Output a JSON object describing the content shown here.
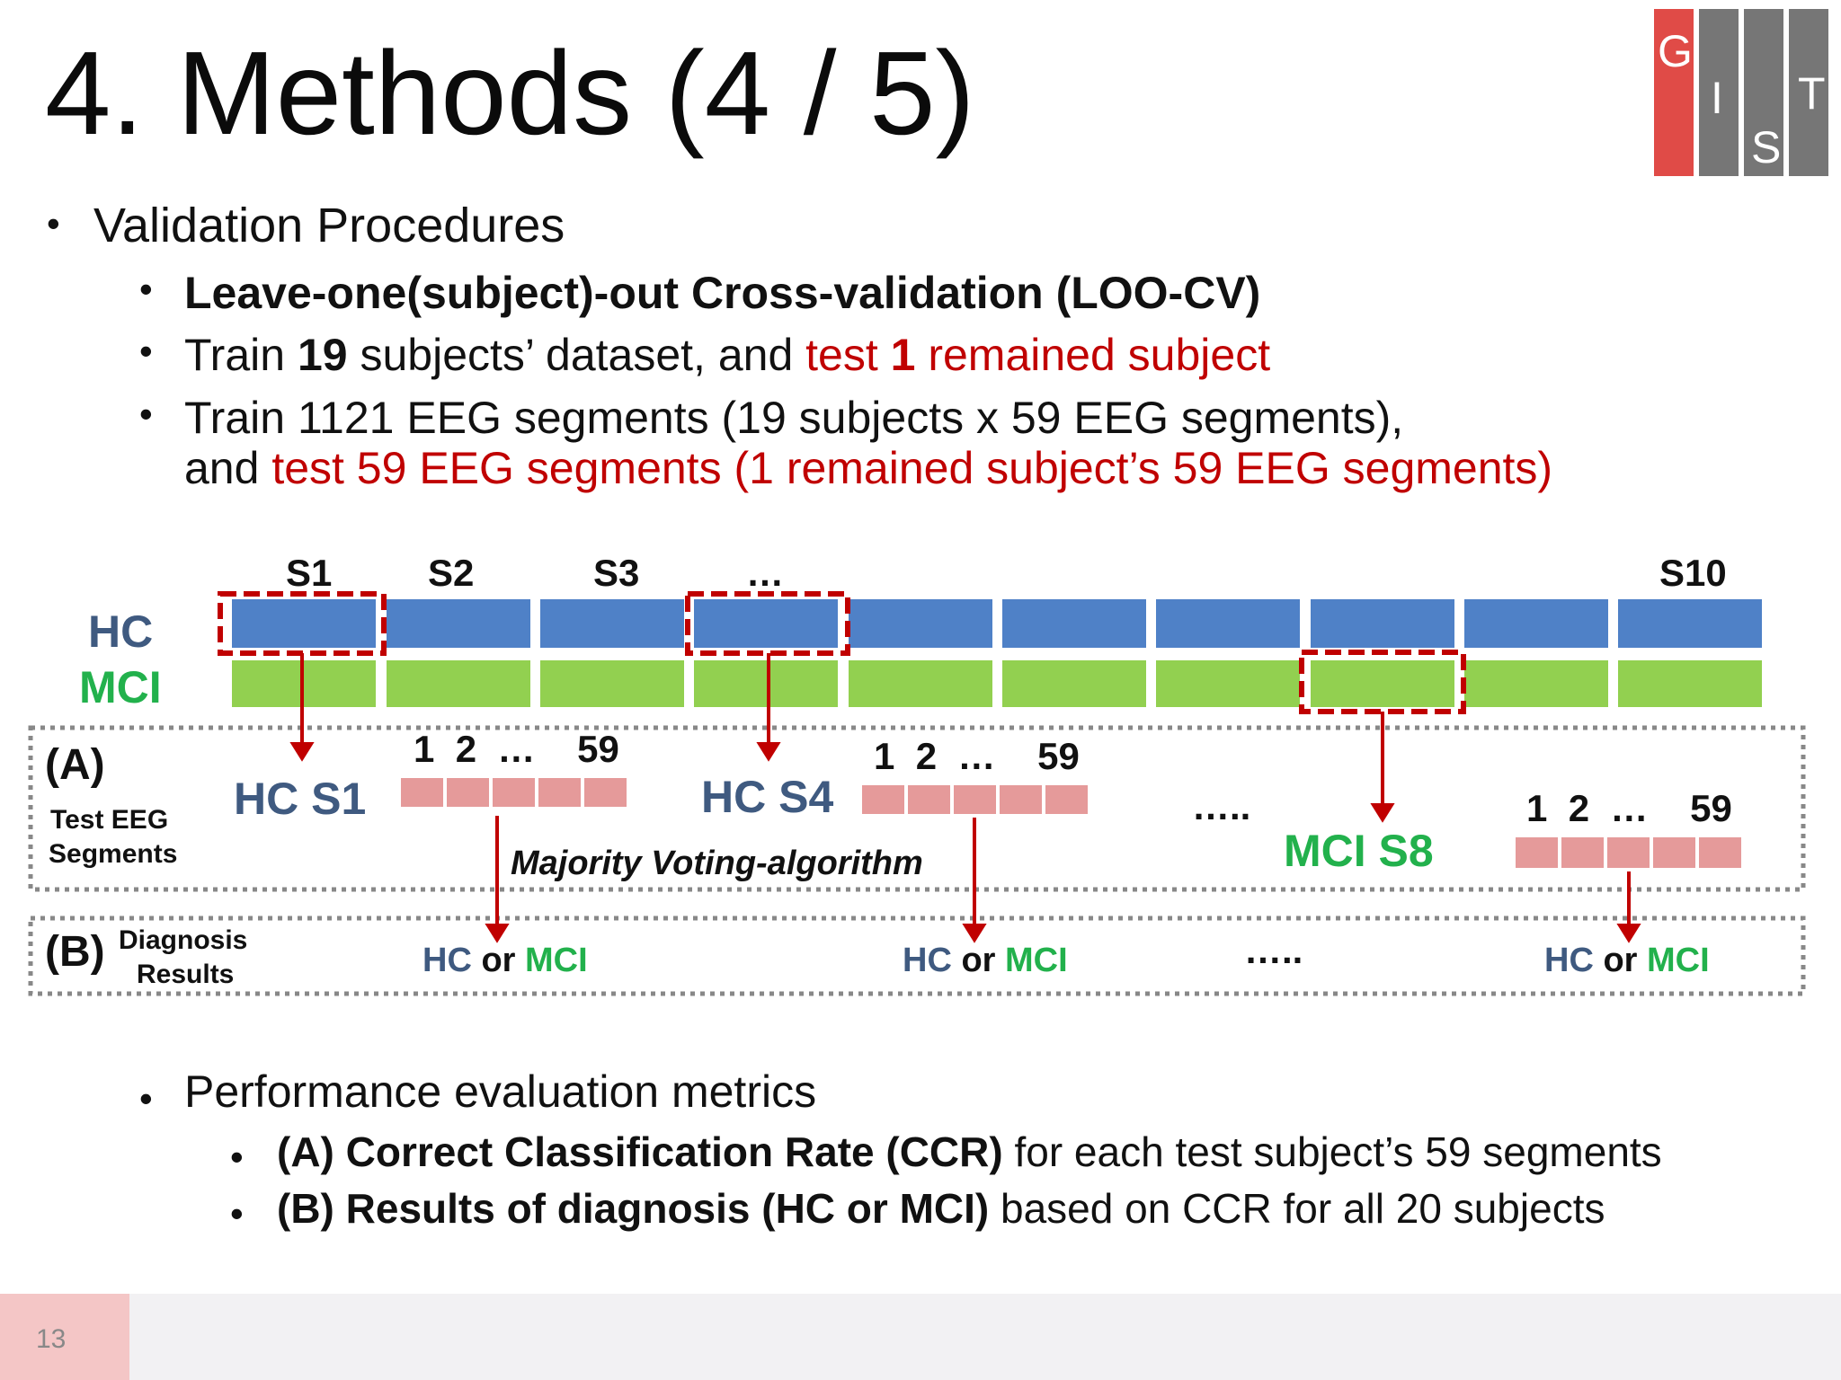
{
  "title": "4. Methods (4 / 5)",
  "logo": {
    "letters": [
      "G",
      "I",
      "S",
      "T"
    ],
    "colors": {
      "first": "#e04b47",
      "rest": "#767676"
    }
  },
  "bullets": {
    "validation": "Validation Procedures",
    "loo": "Leave-one(subject)-out Cross-validation (LOO-CV)",
    "train_a": "Train ",
    "train_b": "19",
    "train_c": " subjects’ dataset, and ",
    "train_d": "test ",
    "train_e": "1",
    "train_f": " remained subject",
    "seg_line1": "Train 1121 EEG segments (19 subjects x 59 EEG segments),",
    "seg_line2_a": "and ",
    "seg_line2_b": "test 59 EEG segments (1 remained subject’s 59 EEG segments)",
    "perf": "Performance evaluation metrics",
    "ccr_a": "(A) Correct Classification Rate (CCR)",
    "ccr_b": " for each test subject’s 59 segments",
    "res_a": "(B) Results of diagnosis (HC or MCI)",
    "res_b": " based on CCR for all 20 subjects",
    "dot": "•"
  },
  "diagram": {
    "row_hc": "HC",
    "row_mci": "MCI",
    "subjects": {
      "s1": "S1",
      "s2": "S2",
      "s3": "S3",
      "ellipsis": "…",
      "s10": "S10"
    },
    "section_a": "(A)",
    "section_a_sub1": "Test EEG",
    "section_a_sub2": "Segments",
    "section_b": "(B)",
    "section_b_sub1": "Diagnosis",
    "section_b_sub2": "Results",
    "test_hc_s1": "HC S1",
    "test_hc_s4": "HC S4",
    "test_mci_s8": "MCI S8",
    "seg_1": "1",
    "seg_2": "2",
    "seg_dots": "…",
    "seg_59": "59",
    "majority": "Majority Voting-algorithm",
    "dots5": "…..",
    "result_hc": "HC",
    "result_or": " or ",
    "result_mci": "MCI",
    "colors": {
      "hc_bar": "#4f81c7",
      "mci_bar": "#92d050",
      "seg": "#e59a9a",
      "arrow": "#c00000",
      "hc_text": "#3f5a80",
      "mci_text": "#22b14c"
    }
  },
  "page_number": "13"
}
